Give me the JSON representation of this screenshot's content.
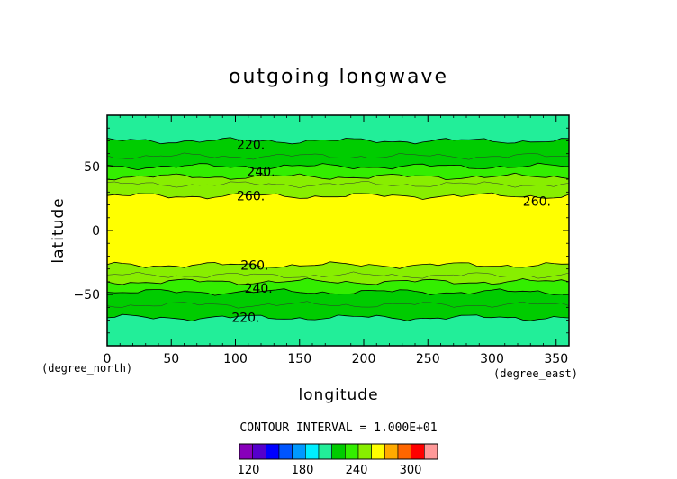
{
  "chart_data": {
    "type": "heatmap",
    "title": "outgoing longwave",
    "xlabel": "longitude",
    "ylabel": "latitude",
    "x_units": "(degree_east)",
    "y_units": "(degree_north)",
    "xlim": [
      0,
      360
    ],
    "ylim": [
      -90,
      90
    ],
    "xticks": [
      0,
      50,
      100,
      150,
      200,
      250,
      300,
      350
    ],
    "yticks": [
      50,
      0,
      -50
    ],
    "contour_interval_label": "CONTOUR INTERVAL = 1.000E+01",
    "contour_interval": 10,
    "bands": [
      {
        "lat_min": 70,
        "lat_max": 90,
        "value_range": "200-210"
      },
      {
        "lat_min": 50,
        "lat_max": 70,
        "value_range": "230-240"
      },
      {
        "lat_min": 42,
        "lat_max": 50,
        "value_range": "240-250"
      },
      {
        "lat_min": 27,
        "lat_max": 42,
        "value_range": "250-260"
      },
      {
        "lat_min": -27,
        "lat_max": 27,
        "value_range": "260-270"
      },
      {
        "lat_min": -40,
        "lat_max": -27,
        "value_range": "250-260"
      },
      {
        "lat_min": -48,
        "lat_max": -40,
        "value_range": "240-250"
      },
      {
        "lat_min": -68,
        "lat_max": -48,
        "value_range": "230-240"
      },
      {
        "lat_min": -90,
        "lat_max": -68,
        "value_range": "200-210"
      }
    ],
    "contour_labels": [
      {
        "text": "220.",
        "lon": 112,
        "lat": 67
      },
      {
        "text": "240.",
        "lon": 120,
        "lat": 46
      },
      {
        "text": "260.",
        "lon": 112,
        "lat": 27
      },
      {
        "text": "260.",
        "lon": 335,
        "lat": 23
      },
      {
        "text": "260.",
        "lon": 115,
        "lat": -27
      },
      {
        "text": "240.",
        "lon": 118,
        "lat": -45
      },
      {
        "text": "220.",
        "lon": 108,
        "lat": -68
      }
    ],
    "colorbar": {
      "ticks": [
        120,
        180,
        240,
        300
      ],
      "min": 110,
      "max": 330,
      "step": 10
    }
  },
  "colors": {
    "c200": "#22ee99",
    "c230": "#00cc00",
    "c240": "#33ee00",
    "c250": "#88ee00",
    "c260": "#ffff00",
    "colorbar": [
      "#8800bb",
      "#5500cc",
      "#0000ff",
      "#0055ff",
      "#0099ff",
      "#00eeff",
      "#22ee99",
      "#00cc00",
      "#33ee00",
      "#88ee00",
      "#ffff00",
      "#ffaa00",
      "#ff6600",
      "#ff0000",
      "#ff9999"
    ]
  }
}
